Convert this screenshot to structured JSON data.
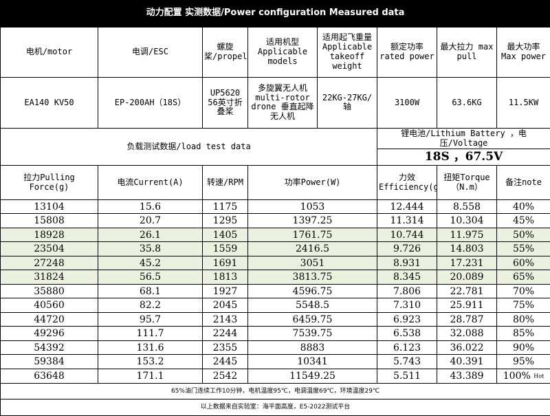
{
  "title": "动力配置 实测数据/Power configuration Measured data",
  "spec_headers": {
    "motor": "电机/motor",
    "esc": "电调/ESC",
    "propeller": "螺旋桨/propeller",
    "models": "适用机型 Applicable models",
    "takeoff_weight": "适用起飞重量 Applicable takeoff weight",
    "rated_power": "额定功率 rated power",
    "max_pull": "最大拉力 max pull",
    "max_power": "最大功率 Max power"
  },
  "spec_values": {
    "motor": "EA140 KV50",
    "esc": "EP-200AH（18S）",
    "propeller": "UP5620  56英寸折叠桨",
    "models": "多旋翼无人机 multi-rotor drone 垂直起降无人机",
    "takeoff_weight": "22KG-27KG/轴",
    "rated_power": "3100W",
    "max_pull": "63.6KG",
    "max_power": "11.5KW"
  },
  "load_label": "负载测试数据/load test data",
  "battery_label": "锂电池/Lithium Battery ，电压/Voltage",
  "battery_value": "18S ，67.5V",
  "columns": {
    "pulling_force": "拉力Pulling Force(g)",
    "current": "电流Current(A)",
    "rpm": "转速/RPM",
    "power": "功率Power(W)",
    "efficiency": "力效Efficiency(g/W)",
    "torque": "扭矩Torque（N.m）",
    "note": "备注note"
  },
  "rows": [
    {
      "force": "13104",
      "current": "15.6",
      "rpm": "1175",
      "power": "1053",
      "efficiency": "12.444",
      "torque": "8.558",
      "note": "40%",
      "note_extra": "",
      "highlight": false
    },
    {
      "force": "15808",
      "current": "20.7",
      "rpm": "1295",
      "power": "1397.25",
      "efficiency": "11.314",
      "torque": "10.304",
      "note": "45%",
      "note_extra": "",
      "highlight": false
    },
    {
      "force": "18928",
      "current": "26.1",
      "rpm": "1405",
      "power": "1761.75",
      "efficiency": "10.744",
      "torque": "11.975",
      "note": "50%",
      "note_extra": "",
      "highlight": true
    },
    {
      "force": "23504",
      "current": "35.8",
      "rpm": "1559",
      "power": "2416.5",
      "efficiency": "9.726",
      "torque": "14.803",
      "note": "55%",
      "note_extra": "",
      "highlight": true
    },
    {
      "force": "27248",
      "current": "45.2",
      "rpm": "1691",
      "power": "3051",
      "efficiency": "8.931",
      "torque": "17.231",
      "note": "60%",
      "note_extra": "",
      "highlight": true
    },
    {
      "force": "31824",
      "current": "56.5",
      "rpm": "1813",
      "power": "3813.75",
      "efficiency": "8.345",
      "torque": "20.089",
      "note": "65%",
      "note_extra": "",
      "highlight": true
    },
    {
      "force": "35880",
      "current": "68.1",
      "rpm": "1927",
      "power": "4596.75",
      "efficiency": "7.806",
      "torque": "22.781",
      "note": "70%",
      "note_extra": "",
      "highlight": false
    },
    {
      "force": "40560",
      "current": "82.2",
      "rpm": "2045",
      "power": "5548.5",
      "efficiency": "7.310",
      "torque": "25.911",
      "note": "75%",
      "note_extra": "",
      "highlight": false
    },
    {
      "force": "44720",
      "current": "95.7",
      "rpm": "2143",
      "power": "6459.75",
      "efficiency": "6.923",
      "torque": "28.787",
      "note": "80%",
      "note_extra": "",
      "highlight": false
    },
    {
      "force": "49296",
      "current": "111.7",
      "rpm": "2244",
      "power": "7539.75",
      "efficiency": "6.538",
      "torque": "32.088",
      "note": "85%",
      "note_extra": "",
      "highlight": false
    },
    {
      "force": "54392",
      "current": "131.6",
      "rpm": "2355",
      "power": "8883",
      "efficiency": "6.123",
      "torque": "36.022",
      "note": "90%",
      "note_extra": "",
      "highlight": false
    },
    {
      "force": "59384",
      "current": "153.2",
      "rpm": "2445",
      "power": "10341",
      "efficiency": "5.743",
      "torque": "40.391",
      "note": "95%",
      "note_extra": "",
      "highlight": false
    },
    {
      "force": "63648",
      "current": "171.1",
      "rpm": "2542",
      "power": "11549.25",
      "efficiency": "5.511",
      "torque": "43.389",
      "note": "100%",
      "note_extra": "Hot",
      "highlight": false
    }
  ],
  "footer_note": "65%油门连续工作10分钟，电机温度95℃，电调温度69℃，环境温度29℃",
  "footer_source": "以上数据来自实验室：海平面高度，E5-2022测试平台"
}
